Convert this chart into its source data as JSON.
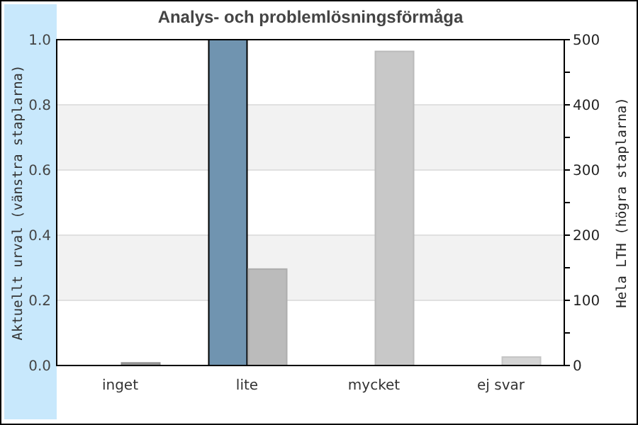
{
  "chart_data": {
    "type": "bar",
    "title": "Analys- och problemlösningsförmåga",
    "ylabel": "Aktuellt urval (vänstra staplarna)",
    "y2label": "Hela LTH (högra staplarna)",
    "categories": [
      "inget",
      "lite",
      "mycket",
      "ej svar"
    ],
    "series": [
      {
        "color": "#7094b0",
        "values": [
          0,
          1.0,
          0,
          0
        ]
      },
      {
        "axis": "y2",
        "colors": [
          "#999999",
          "#bbbbbb",
          "#c8c8c8",
          "#d4d4d4"
        ],
        "values": [
          4,
          148,
          482,
          13
        ]
      }
    ],
    "ylim": [
      0,
      1.0
    ],
    "yticks": [
      {
        "value": 0,
        "label": "0.0"
      },
      {
        "value": 0.2,
        "label": "0.2"
      },
      {
        "value": 0.4,
        "label": "0.4"
      },
      {
        "value": 0.6,
        "label": "0.6"
      },
      {
        "value": 0.8,
        "label": "0.8"
      },
      {
        "value": 1.0,
        "label": "1.0"
      }
    ],
    "y2lim": [
      0,
      500
    ],
    "y2ticks": [
      0,
      {
        "value": 50,
        "label": null
      },
      100,
      {
        "value": 150,
        "label": null
      },
      200,
      {
        "value": 250,
        "label": null
      },
      300,
      {
        "value": 350,
        "label": null
      },
      400,
      {
        "value": 450,
        "label": null
      },
      500
    ],
    "grid": "y"
  }
}
